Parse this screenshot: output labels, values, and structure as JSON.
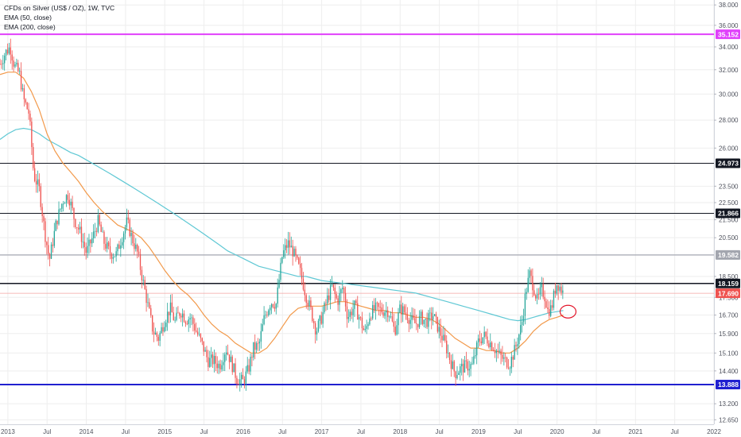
{
  "legend": {
    "title": "CFDs on Silver (US$ / OZ), 1W, TVC",
    "ema50": "EMA (50, close)",
    "ema200": "EMA (200, close)"
  },
  "colors": {
    "background": "#ffffff",
    "grid": "#eeeeee",
    "candle_up": "#26a69a",
    "candle_down": "#ef5350",
    "ema50": "#f2994a",
    "ema200": "#5fc8d4",
    "circle": "#e3162b"
  },
  "chart_data": {
    "type": "candlestick",
    "x_ticks": [
      "2013",
      "Jul",
      "2014",
      "Jul",
      "2015",
      "Jul",
      "2016",
      "Jul",
      "2017",
      "Jul",
      "2018",
      "Jul",
      "2019",
      "Jul",
      "2020",
      "Jul",
      "2021",
      "Jul",
      "2022"
    ],
    "x_tick_years": [
      2013.0,
      2013.5,
      2014.0,
      2014.5,
      2015.0,
      2015.5,
      2016.0,
      2016.5,
      2017.0,
      2017.5,
      2018.0,
      2018.5,
      2019.0,
      2019.5,
      2020.0,
      2020.5,
      2021.0,
      2021.5,
      2022.0
    ],
    "x_range": [
      2012.9,
      2022.0
    ],
    "y_ticks": [
      "38.000",
      "36.000",
      "34.000",
      "32.000",
      "30.000",
      "28.000",
      "26.000",
      "23.500",
      "22.500",
      "21.500",
      "20.500",
      "18.500",
      "17.500",
      "16.700",
      "15.900",
      "15.100",
      "14.400",
      "13.200",
      "12.650"
    ],
    "y_tick_values": [
      38.0,
      36.0,
      34.0,
      32.0,
      30.0,
      28.0,
      26.0,
      23.5,
      22.5,
      21.5,
      20.5,
      18.5,
      17.5,
      16.7,
      15.9,
      15.1,
      14.4,
      13.2,
      12.65
    ],
    "y_range": [
      12.5,
      38.5
    ],
    "scale": "log",
    "horizontal_levels": [
      {
        "value": 35.152,
        "label": "35.152",
        "color": "#e040fb",
        "line_color": "#e040fb",
        "text_color": "#ffffff",
        "width": 2
      },
      {
        "value": 24.973,
        "label": "24.973",
        "color": "#131722",
        "line_color": "#131722",
        "text_color": "#ffffff",
        "width": 1
      },
      {
        "value": 21.866,
        "label": "21.866",
        "color": "#131722",
        "line_color": "#131722",
        "text_color": "#ffffff",
        "width": 1
      },
      {
        "value": 19.582,
        "label": "19.582",
        "color": "#a3a6af",
        "line_color": "#b2b5be",
        "text_color": "#ffffff",
        "width": 1.5
      },
      {
        "value": 18.159,
        "label": "18.159",
        "color": "#131722",
        "line_color": "#131722",
        "text_color": "#ffffff",
        "width": 1.5
      },
      {
        "value": 17.69,
        "label": "17.690",
        "color": "#ef5350",
        "line_color": "#f4a3a2",
        "text_color": "#ffffff",
        "width": 0.8
      },
      {
        "value": 13.888,
        "label": "13.888",
        "color": "#2020d0",
        "line_color": "#2020d0",
        "text_color": "#ffffff",
        "width": 2
      }
    ],
    "price_path": [
      [
        2012.9,
        32.5
      ],
      [
        2012.97,
        33.5
      ],
      [
        2013.03,
        34.0
      ],
      [
        2013.08,
        32.4
      ],
      [
        2013.15,
        31.6
      ],
      [
        2013.2,
        29.6
      ],
      [
        2013.27,
        28.5
      ],
      [
        2013.33,
        24.2
      ],
      [
        2013.4,
        23.3
      ],
      [
        2013.47,
        20.8
      ],
      [
        2013.53,
        19.3
      ],
      [
        2013.62,
        21.4
      ],
      [
        2013.7,
        22.6
      ],
      [
        2013.77,
        23.0
      ],
      [
        2013.85,
        21.5
      ],
      [
        2013.92,
        20.8
      ],
      [
        2014.0,
        19.7
      ],
      [
        2014.08,
        20.5
      ],
      [
        2014.15,
        21.4
      ],
      [
        2014.22,
        20.3
      ],
      [
        2014.3,
        19.7
      ],
      [
        2014.38,
        19.6
      ],
      [
        2014.45,
        20.5
      ],
      [
        2014.52,
        21.4
      ],
      [
        2014.58,
        20.5
      ],
      [
        2014.65,
        19.7
      ],
      [
        2014.72,
        18.3
      ],
      [
        2014.78,
        17.2
      ],
      [
        2014.85,
        16.0
      ],
      [
        2014.92,
        15.7
      ],
      [
        2015.0,
        16.5
      ],
      [
        2015.07,
        17.0
      ],
      [
        2015.13,
        16.4
      ],
      [
        2015.2,
        16.9
      ],
      [
        2015.27,
        16.5
      ],
      [
        2015.33,
        16.6
      ],
      [
        2015.4,
        16.0
      ],
      [
        2015.47,
        15.5
      ],
      [
        2015.55,
        14.8
      ],
      [
        2015.62,
        14.8
      ],
      [
        2015.7,
        14.6
      ],
      [
        2015.78,
        15.3
      ],
      [
        2015.85,
        14.7
      ],
      [
        2015.92,
        14.1
      ],
      [
        2016.0,
        14.0
      ],
      [
        2016.07,
        14.5
      ],
      [
        2016.13,
        15.3
      ],
      [
        2016.2,
        15.4
      ],
      [
        2016.27,
        16.6
      ],
      [
        2016.35,
        17.3
      ],
      [
        2016.42,
        17.2
      ],
      [
        2016.5,
        19.6
      ],
      [
        2016.57,
        20.2
      ],
      [
        2016.63,
        19.8
      ],
      [
        2016.72,
        18.8
      ],
      [
        2016.8,
        17.6
      ],
      [
        2016.87,
        16.8
      ],
      [
        2016.93,
        16.0
      ],
      [
        2017.0,
        16.6
      ],
      [
        2017.07,
        17.4
      ],
      [
        2017.13,
        18.0
      ],
      [
        2017.2,
        17.3
      ],
      [
        2017.27,
        18.0
      ],
      [
        2017.33,
        16.6
      ],
      [
        2017.42,
        17.1
      ],
      [
        2017.48,
        16.6
      ],
      [
        2017.55,
        15.9
      ],
      [
        2017.62,
        16.8
      ],
      [
        2017.7,
        17.0
      ],
      [
        2017.77,
        16.9
      ],
      [
        2017.85,
        16.9
      ],
      [
        2017.93,
        16.0
      ],
      [
        2018.0,
        17.0
      ],
      [
        2018.07,
        16.8
      ],
      [
        2018.13,
        16.5
      ],
      [
        2018.2,
        16.3
      ],
      [
        2018.27,
        16.6
      ],
      [
        2018.33,
        16.4
      ],
      [
        2018.42,
        16.7
      ],
      [
        2018.5,
        16.0
      ],
      [
        2018.57,
        15.5
      ],
      [
        2018.63,
        14.9
      ],
      [
        2018.7,
        14.3
      ],
      [
        2018.77,
        14.5
      ],
      [
        2018.85,
        14.6
      ],
      [
        2018.92,
        14.6
      ],
      [
        2019.0,
        15.6
      ],
      [
        2019.07,
        15.8
      ],
      [
        2019.13,
        15.6
      ],
      [
        2019.2,
        15.3
      ],
      [
        2019.27,
        15.0
      ],
      [
        2019.33,
        14.8
      ],
      [
        2019.4,
        14.7
      ],
      [
        2019.47,
        15.3
      ],
      [
        2019.55,
        16.3
      ],
      [
        2019.6,
        17.7
      ],
      [
        2019.65,
        18.6
      ],
      [
        2019.7,
        18.0
      ],
      [
        2019.75,
        17.3
      ],
      [
        2019.8,
        17.9
      ],
      [
        2019.85,
        17.5
      ],
      [
        2019.88,
        16.9
      ],
      [
        2019.93,
        17.0
      ],
      [
        2019.97,
        17.8
      ],
      [
        2020.0,
        18.2
      ],
      [
        2020.05,
        17.9
      ],
      [
        2020.08,
        17.69
      ]
    ],
    "ema50_path": [
      [
        2012.9,
        31.6
      ],
      [
        2013.0,
        31.8
      ],
      [
        2013.1,
        31.8
      ],
      [
        2013.2,
        31.3
      ],
      [
        2013.3,
        30.2
      ],
      [
        2013.4,
        28.8
      ],
      [
        2013.5,
        27.0
      ],
      [
        2013.6,
        25.8
      ],
      [
        2013.7,
        25.0
      ],
      [
        2013.8,
        24.4
      ],
      [
        2013.9,
        23.8
      ],
      [
        2014.0,
        23.1
      ],
      [
        2014.1,
        22.5
      ],
      [
        2014.2,
        22.0
      ],
      [
        2014.3,
        21.6
      ],
      [
        2014.4,
        21.2
      ],
      [
        2014.5,
        21.0
      ],
      [
        2014.6,
        20.8
      ],
      [
        2014.7,
        20.5
      ],
      [
        2014.8,
        20.0
      ],
      [
        2014.9,
        19.4
      ],
      [
        2015.0,
        18.8
      ],
      [
        2015.1,
        18.3
      ],
      [
        2015.2,
        17.9
      ],
      [
        2015.3,
        17.6
      ],
      [
        2015.4,
        17.2
      ],
      [
        2015.5,
        16.7
      ],
      [
        2015.6,
        16.3
      ],
      [
        2015.7,
        16.0
      ],
      [
        2015.8,
        15.8
      ],
      [
        2015.9,
        15.5
      ],
      [
        2016.0,
        15.3
      ],
      [
        2016.1,
        15.1
      ],
      [
        2016.2,
        15.1
      ],
      [
        2016.3,
        15.3
      ],
      [
        2016.4,
        15.7
      ],
      [
        2016.5,
        16.2
      ],
      [
        2016.6,
        16.7
      ],
      [
        2016.7,
        17.0
      ],
      [
        2016.8,
        17.1
      ],
      [
        2016.9,
        17.1
      ],
      [
        2017.0,
        17.1
      ],
      [
        2017.1,
        17.2
      ],
      [
        2017.2,
        17.3
      ],
      [
        2017.3,
        17.3
      ],
      [
        2017.4,
        17.2
      ],
      [
        2017.5,
        17.1
      ],
      [
        2017.6,
        17.0
      ],
      [
        2017.7,
        16.9
      ],
      [
        2017.8,
        16.9
      ],
      [
        2017.9,
        16.8
      ],
      [
        2018.0,
        16.8
      ],
      [
        2018.1,
        16.7
      ],
      [
        2018.2,
        16.6
      ],
      [
        2018.3,
        16.6
      ],
      [
        2018.4,
        16.5
      ],
      [
        2018.5,
        16.3
      ],
      [
        2018.6,
        16.0
      ],
      [
        2018.7,
        15.7
      ],
      [
        2018.8,
        15.5
      ],
      [
        2018.9,
        15.3
      ],
      [
        2019.0,
        15.3
      ],
      [
        2019.1,
        15.2
      ],
      [
        2019.2,
        15.2
      ],
      [
        2019.3,
        15.1
      ],
      [
        2019.4,
        15.1
      ],
      [
        2019.5,
        15.3
      ],
      [
        2019.6,
        15.6
      ],
      [
        2019.7,
        16.0
      ],
      [
        2019.8,
        16.3
      ],
      [
        2019.9,
        16.5
      ],
      [
        2020.0,
        16.6
      ],
      [
        2020.08,
        16.7
      ]
    ],
    "ema200_path": [
      [
        2012.9,
        26.6
      ],
      [
        2013.0,
        27.0
      ],
      [
        2013.1,
        27.3
      ],
      [
        2013.2,
        27.4
      ],
      [
        2013.3,
        27.3
      ],
      [
        2013.4,
        27.0
      ],
      [
        2013.5,
        26.6
      ],
      [
        2013.6,
        26.3
      ],
      [
        2013.7,
        26.0
      ],
      [
        2013.8,
        25.7
      ],
      [
        2013.9,
        25.5
      ],
      [
        2014.0,
        25.2
      ],
      [
        2014.1,
        24.9
      ],
      [
        2014.2,
        24.6
      ],
      [
        2014.3,
        24.3
      ],
      [
        2014.4,
        24.0
      ],
      [
        2014.5,
        23.7
      ],
      [
        2014.6,
        23.4
      ],
      [
        2014.7,
        23.1
      ],
      [
        2014.8,
        22.8
      ],
      [
        2014.9,
        22.5
      ],
      [
        2015.0,
        22.2
      ],
      [
        2015.1,
        21.9
      ],
      [
        2015.2,
        21.6
      ],
      [
        2015.3,
        21.3
      ],
      [
        2015.4,
        21.0
      ],
      [
        2015.5,
        20.7
      ],
      [
        2015.6,
        20.4
      ],
      [
        2015.7,
        20.1
      ],
      [
        2015.8,
        19.8
      ],
      [
        2015.9,
        19.6
      ],
      [
        2016.0,
        19.4
      ],
      [
        2016.1,
        19.2
      ],
      [
        2016.2,
        19.0
      ],
      [
        2016.3,
        18.9
      ],
      [
        2016.4,
        18.8
      ],
      [
        2016.5,
        18.7
      ],
      [
        2016.6,
        18.6
      ],
      [
        2016.7,
        18.5
      ],
      [
        2016.8,
        18.5
      ],
      [
        2016.9,
        18.4
      ],
      [
        2017.0,
        18.3
      ],
      [
        2017.2,
        18.2
      ],
      [
        2017.4,
        18.1
      ],
      [
        2017.6,
        18.0
      ],
      [
        2017.8,
        17.9
      ],
      [
        2018.0,
        17.8
      ],
      [
        2018.2,
        17.7
      ],
      [
        2018.4,
        17.5
      ],
      [
        2018.6,
        17.3
      ],
      [
        2018.8,
        17.1
      ],
      [
        2019.0,
        16.9
      ],
      [
        2019.2,
        16.7
      ],
      [
        2019.4,
        16.5
      ],
      [
        2019.5,
        16.45
      ],
      [
        2019.6,
        16.5
      ],
      [
        2019.7,
        16.6
      ],
      [
        2019.8,
        16.7
      ],
      [
        2019.9,
        16.8
      ],
      [
        2020.0,
        16.85
      ],
      [
        2020.08,
        16.9
      ]
    ],
    "annotation_circle": {
      "x": 2020.14,
      "y": 16.85
    }
  }
}
